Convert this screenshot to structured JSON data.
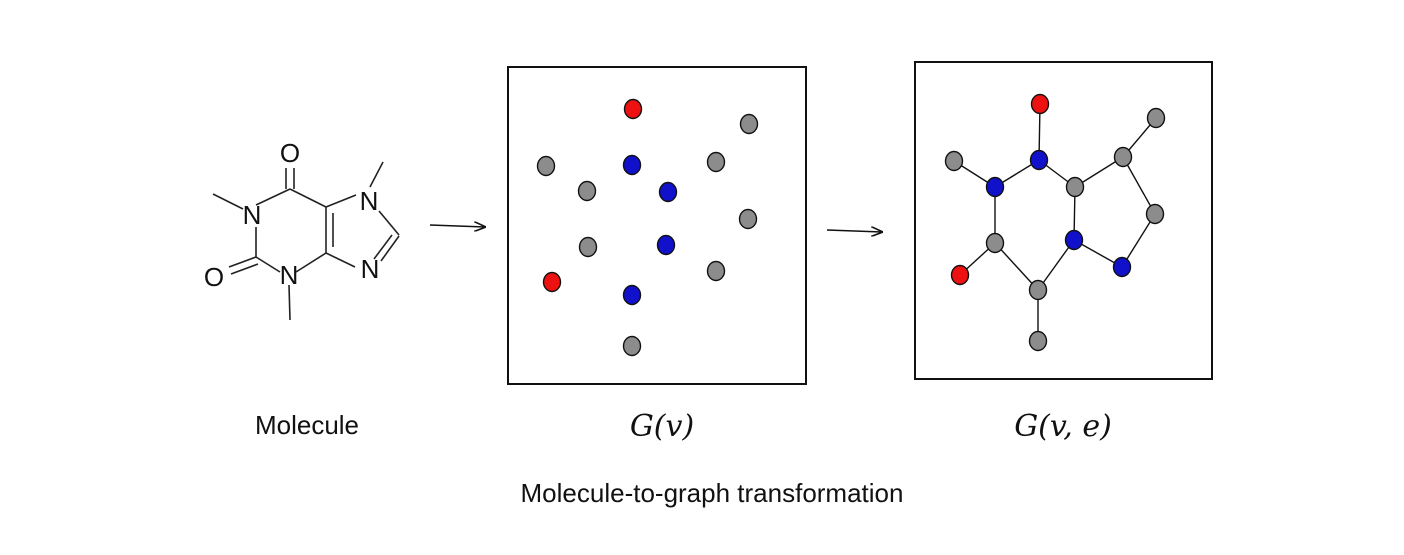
{
  "caption": "Molecule-to-graph transformation",
  "panels": {
    "molecule": {
      "label": "Molecule"
    },
    "nodes_only": {
      "label": "G(v)"
    },
    "full_graph": {
      "label": "G(v, e)"
    }
  },
  "molecule_atoms": {
    "o_top": "O",
    "o_left": "O",
    "n1": "N",
    "n3": "N",
    "n7": "N",
    "n9": "N"
  },
  "colors": {
    "oxygen": "#ee1111",
    "nitrogen": "#1111cc",
    "carbon": "#8c8c8c"
  },
  "node_types": {
    "G_v": [
      "O",
      "C",
      "C",
      "N",
      "C",
      "C",
      "N",
      "C",
      "C",
      "N",
      "C",
      "O",
      "N",
      "C"
    ],
    "G_ve": [
      "O",
      "C",
      "C",
      "N",
      "C",
      "N",
      "C",
      "C",
      "C",
      "N",
      "O",
      "N",
      "C",
      "C"
    ]
  }
}
